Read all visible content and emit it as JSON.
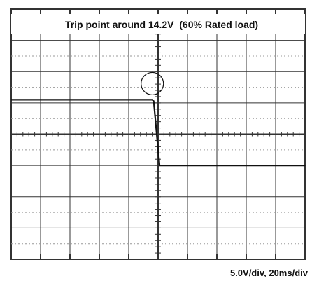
{
  "title": "Trip point around 14.2V  (60% Rated load)",
  "scale_label": "5.0V/div, 20ms/div",
  "colors": {
    "trace": "#111111",
    "grid": "#333333",
    "background": "#ffffff"
  },
  "chart_data": {
    "type": "line",
    "title": "Trip point around 14.2V  (60% Rated load)",
    "annotation": "5.0V/div, 20ms/div",
    "grid": {
      "divisions_x": 10,
      "divisions_y": 8,
      "minor_ticks": true
    },
    "units": {
      "x": "ms",
      "y": "V"
    },
    "xlim": [
      0,
      200
    ],
    "ylim": [
      -20,
      20
    ],
    "series": [
      {
        "x": [
          0,
          96,
          97,
          101,
          200
        ],
        "y": [
          5.5,
          5.5,
          5.3,
          -5.0,
          -5.0
        ]
      }
    ],
    "markers": [
      {
        "type": "circle",
        "x": 97,
        "y": 5.5
      }
    ]
  }
}
